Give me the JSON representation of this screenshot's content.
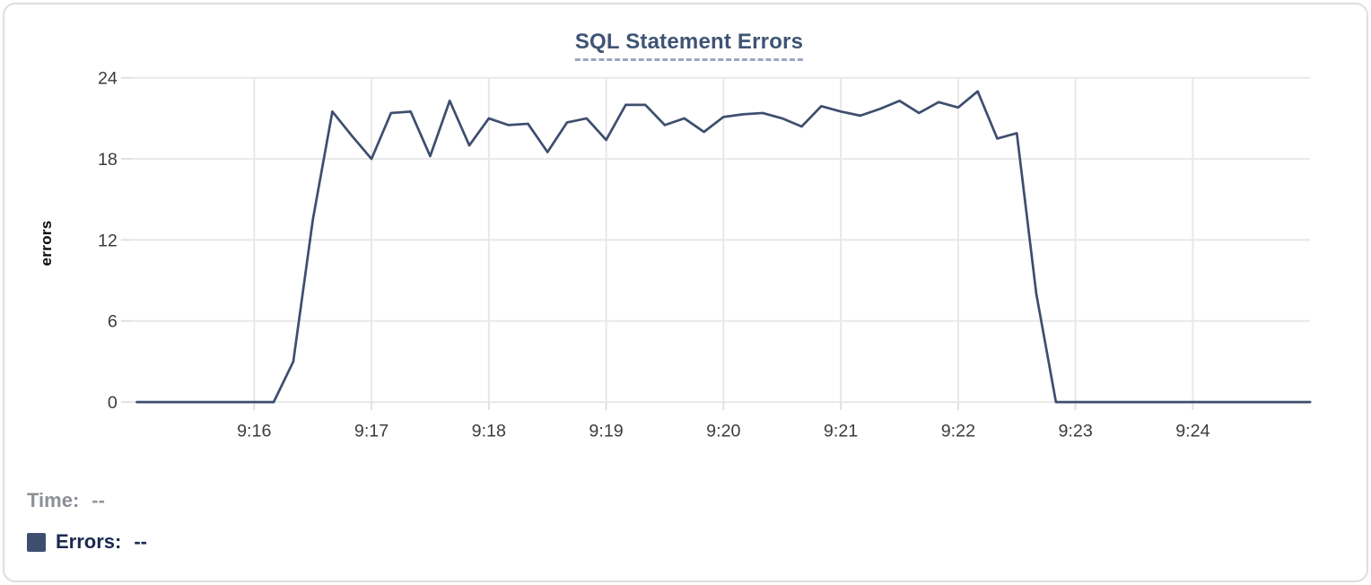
{
  "chart": {
    "title": "SQL Statement Errors",
    "ylabel": "errors"
  },
  "legend": {
    "time_label": "Time:",
    "time_value": "--",
    "errors_label": "Errors:",
    "errors_value": "--"
  },
  "colors": {
    "line": "#3e4e6e",
    "swatch": "#3e4e6e",
    "grid": "#e8e8e8",
    "tick_mark": "#e0e0e0",
    "tick_text": "#3c3c3c",
    "title_text": "#3f5475",
    "title_underline": "#99a8c2",
    "time_text": "#8c8f96",
    "errors_text": "#1b2950",
    "card_border": "#dedede"
  },
  "chart_data": {
    "type": "line",
    "title": "SQL Statement Errors",
    "xlabel": "",
    "ylabel": "errors",
    "ylim": [
      0,
      24
    ],
    "y_ticks": [
      0,
      6,
      12,
      18,
      24
    ],
    "x_tick_labels": [
      "9:16",
      "9:17",
      "9:18",
      "9:19",
      "9:20",
      "9:21",
      "9:22",
      "9:23",
      "9:24"
    ],
    "x_range": [
      "9:15:00",
      "9:25:00"
    ],
    "sample_interval_seconds": 10,
    "grid": true,
    "legend_position": "bottom-left",
    "series": [
      {
        "name": "Errors",
        "times": [
          "9:15:00",
          "9:15:10",
          "9:15:20",
          "9:15:30",
          "9:15:40",
          "9:15:50",
          "9:16:00",
          "9:16:10",
          "9:16:20",
          "9:16:30",
          "9:16:40",
          "9:16:50",
          "9:17:00",
          "9:17:10",
          "9:17:20",
          "9:17:30",
          "9:17:40",
          "9:17:50",
          "9:18:00",
          "9:18:10",
          "9:18:20",
          "9:18:30",
          "9:18:40",
          "9:18:50",
          "9:19:00",
          "9:19:10",
          "9:19:20",
          "9:19:30",
          "9:19:40",
          "9:19:50",
          "9:20:00",
          "9:20:10",
          "9:20:20",
          "9:20:30",
          "9:20:40",
          "9:20:50",
          "9:21:00",
          "9:21:10",
          "9:21:20",
          "9:21:30",
          "9:21:40",
          "9:21:50",
          "9:22:00",
          "9:22:10",
          "9:22:20",
          "9:22:30",
          "9:22:40",
          "9:22:50",
          "9:23:00",
          "9:23:10",
          "9:23:20",
          "9:23:30",
          "9:23:40",
          "9:23:50",
          "9:24:00",
          "9:24:10",
          "9:24:20",
          "9:24:30",
          "9:24:40",
          "9:24:50",
          "9:25:00"
        ],
        "values": [
          0,
          0,
          0,
          0,
          0,
          0,
          0,
          0,
          3,
          13.5,
          21.5,
          19.7,
          18,
          21.4,
          21.5,
          18.2,
          22.3,
          19,
          21,
          20.5,
          20.6,
          18.5,
          20.7,
          21,
          19.4,
          22,
          22,
          20.5,
          21,
          20,
          21.1,
          21.3,
          21.4,
          21,
          20.4,
          21.9,
          21.5,
          21.2,
          21.7,
          22.3,
          21.4,
          22.2,
          21.8,
          23,
          19.5,
          19.9,
          8,
          0,
          0,
          0,
          0,
          0,
          0,
          0,
          0,
          0,
          0,
          0,
          0,
          0,
          0
        ]
      }
    ]
  }
}
